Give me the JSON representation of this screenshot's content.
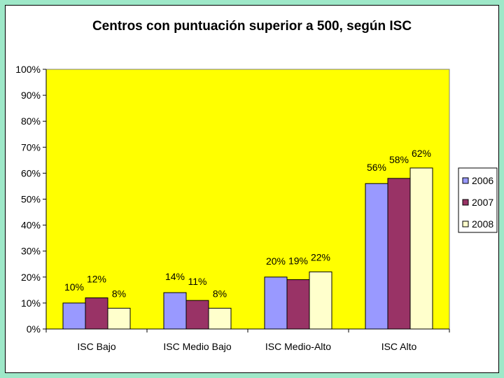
{
  "chart_data": {
    "type": "bar",
    "title": "Centros con puntuación superior a 500, según ISC",
    "xlabel": "",
    "ylabel": "",
    "categories": [
      "ISC Bajo",
      "ISC Medio Bajo",
      "ISC Medio-Alto",
      "ISC Alto"
    ],
    "series": [
      {
        "name": "2006",
        "values": [
          10,
          14,
          20,
          56
        ],
        "labels": [
          "10%",
          "14%",
          "20%",
          "56%"
        ],
        "color": "#9999ff"
      },
      {
        "name": "2007",
        "values": [
          12,
          11,
          19,
          58
        ],
        "labels": [
          "12%",
          "11%",
          "19%",
          "58%"
        ],
        "color": "#993366"
      },
      {
        "name": "2008",
        "values": [
          8,
          8,
          22,
          62
        ],
        "labels": [
          "8%",
          "8%",
          "22%",
          "62%"
        ],
        "color": "#ffffcc"
      }
    ],
    "ylim": [
      0,
      100
    ],
    "yticks": [
      "0%",
      "10%",
      "20%",
      "30%",
      "40%",
      "50%",
      "60%",
      "70%",
      "80%",
      "90%",
      "100%"
    ],
    "grid": false,
    "legend": "right",
    "plot_background": "#ffff00",
    "frame_color": "#9ee8c8"
  }
}
